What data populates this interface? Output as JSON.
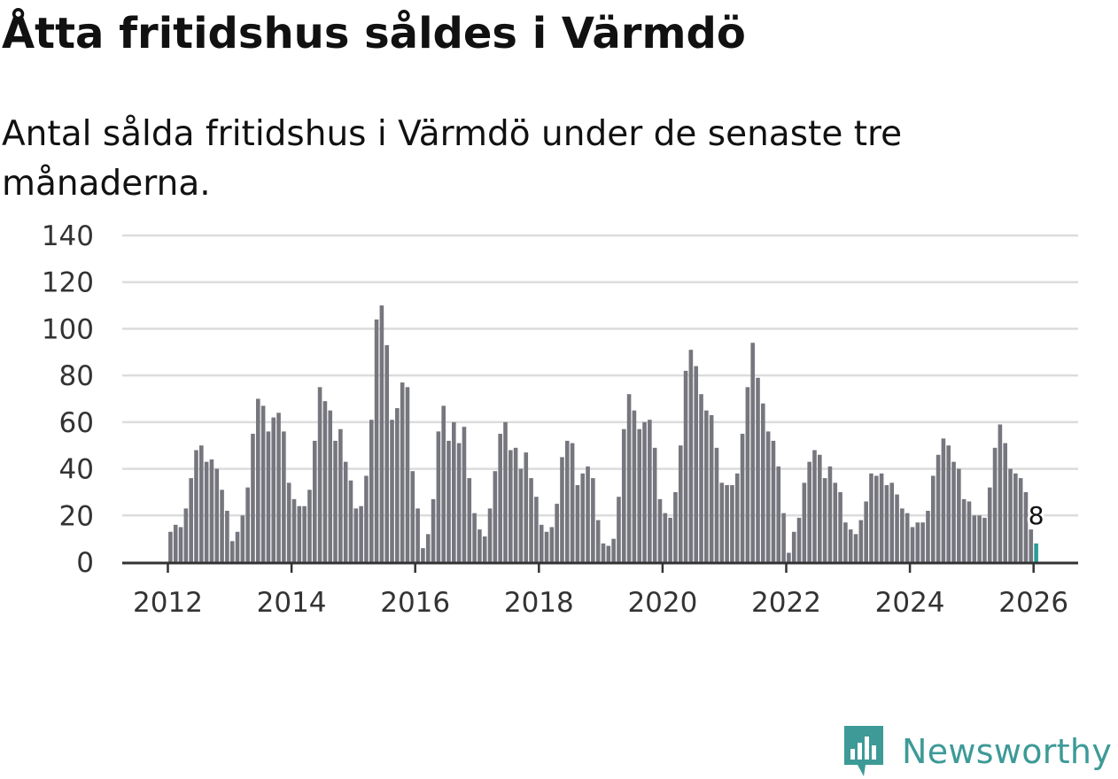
{
  "title": "Åtta fritidshus såldes i Värmdö",
  "subtitle": "Antal sålda fritidshus i Värmdö under de senaste tre månaderna.",
  "brand": {
    "name": "Newsworthy",
    "color": "#3d9a97"
  },
  "colors": {
    "bar": "#76767e",
    "highlight": "#2a9d98",
    "grid": "#dcdcdc",
    "axis": "#333333"
  },
  "chart_data": {
    "type": "bar",
    "title": "Åtta fritidshus såldes i Värmdö",
    "xlabel": "",
    "ylabel": "",
    "ylim": [
      0,
      140
    ],
    "yticks": [
      "0",
      "20",
      "40",
      "60",
      "80",
      "100",
      "120",
      "140"
    ],
    "xticks": [
      "2012",
      "2014",
      "2016",
      "2018",
      "2020",
      "2022",
      "2024",
      "2026"
    ],
    "grid": true,
    "start": "2011-01",
    "values": [
      null,
      null,
      null,
      null,
      null,
      null,
      null,
      null,
      null,
      null,
      null,
      null,
      13,
      16,
      15,
      23,
      36,
      48,
      50,
      43,
      44,
      40,
      31,
      22,
      9,
      13,
      20,
      32,
      55,
      70,
      67,
      56,
      62,
      64,
      56,
      34,
      27,
      24,
      24,
      31,
      52,
      75,
      69,
      65,
      52,
      57,
      43,
      35,
      23,
      24,
      37,
      61,
      104,
      110,
      93,
      61,
      66,
      77,
      75,
      39,
      23,
      6,
      12,
      27,
      56,
      67,
      52,
      60,
      51,
      58,
      36,
      21,
      14,
      11,
      23,
      39,
      55,
      60,
      48,
      49,
      40,
      47,
      36,
      28,
      16,
      13,
      15,
      25,
      45,
      52,
      51,
      33,
      38,
      41,
      36,
      18,
      8,
      7,
      10,
      28,
      57,
      72,
      65,
      57,
      60,
      61,
      49,
      27,
      21,
      19,
      30,
      50,
      82,
      91,
      84,
      72,
      65,
      63,
      49,
      34,
      33,
      33,
      38,
      55,
      75,
      94,
      79,
      68,
      56,
      52,
      41,
      21,
      4,
      13,
      19,
      34,
      43,
      48,
      46,
      36,
      41,
      34,
      30,
      17,
      14,
      12,
      18,
      26,
      38,
      37,
      38,
      33,
      34,
      29,
      23,
      21,
      15,
      17,
      17,
      22,
      37,
      46,
      53,
      50,
      43,
      40,
      27,
      26,
      20,
      20,
      19,
      32,
      49,
      59,
      51,
      40,
      38,
      36,
      30,
      14,
      8
    ],
    "highlight": {
      "label": "8",
      "value": 8,
      "period": "2026-01"
    }
  }
}
